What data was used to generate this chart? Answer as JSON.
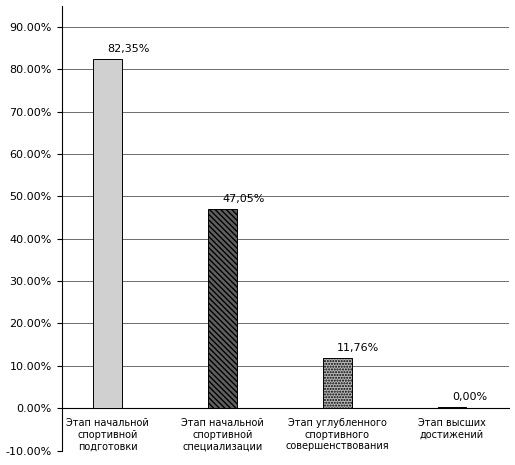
{
  "categories": [
    "Этап начальной\nспортивной\nподготовки",
    "Этап начальной\nспортивной\nспециализации",
    "Этап углубленного\nспортивного\nсовершенствования",
    "Этап высших\nдостижений"
  ],
  "values": [
    82.35,
    47.05,
    11.76,
    0.0
  ],
  "labels": [
    "82,35%",
    "47,05%",
    "11,76%",
    "0,00%"
  ],
  "ylim": [
    -10,
    95
  ],
  "yticks": [
    -10,
    0,
    10,
    20,
    30,
    40,
    50,
    60,
    70,
    80,
    90
  ],
  "background_color": "#ffffff",
  "bar_width": 0.5
}
